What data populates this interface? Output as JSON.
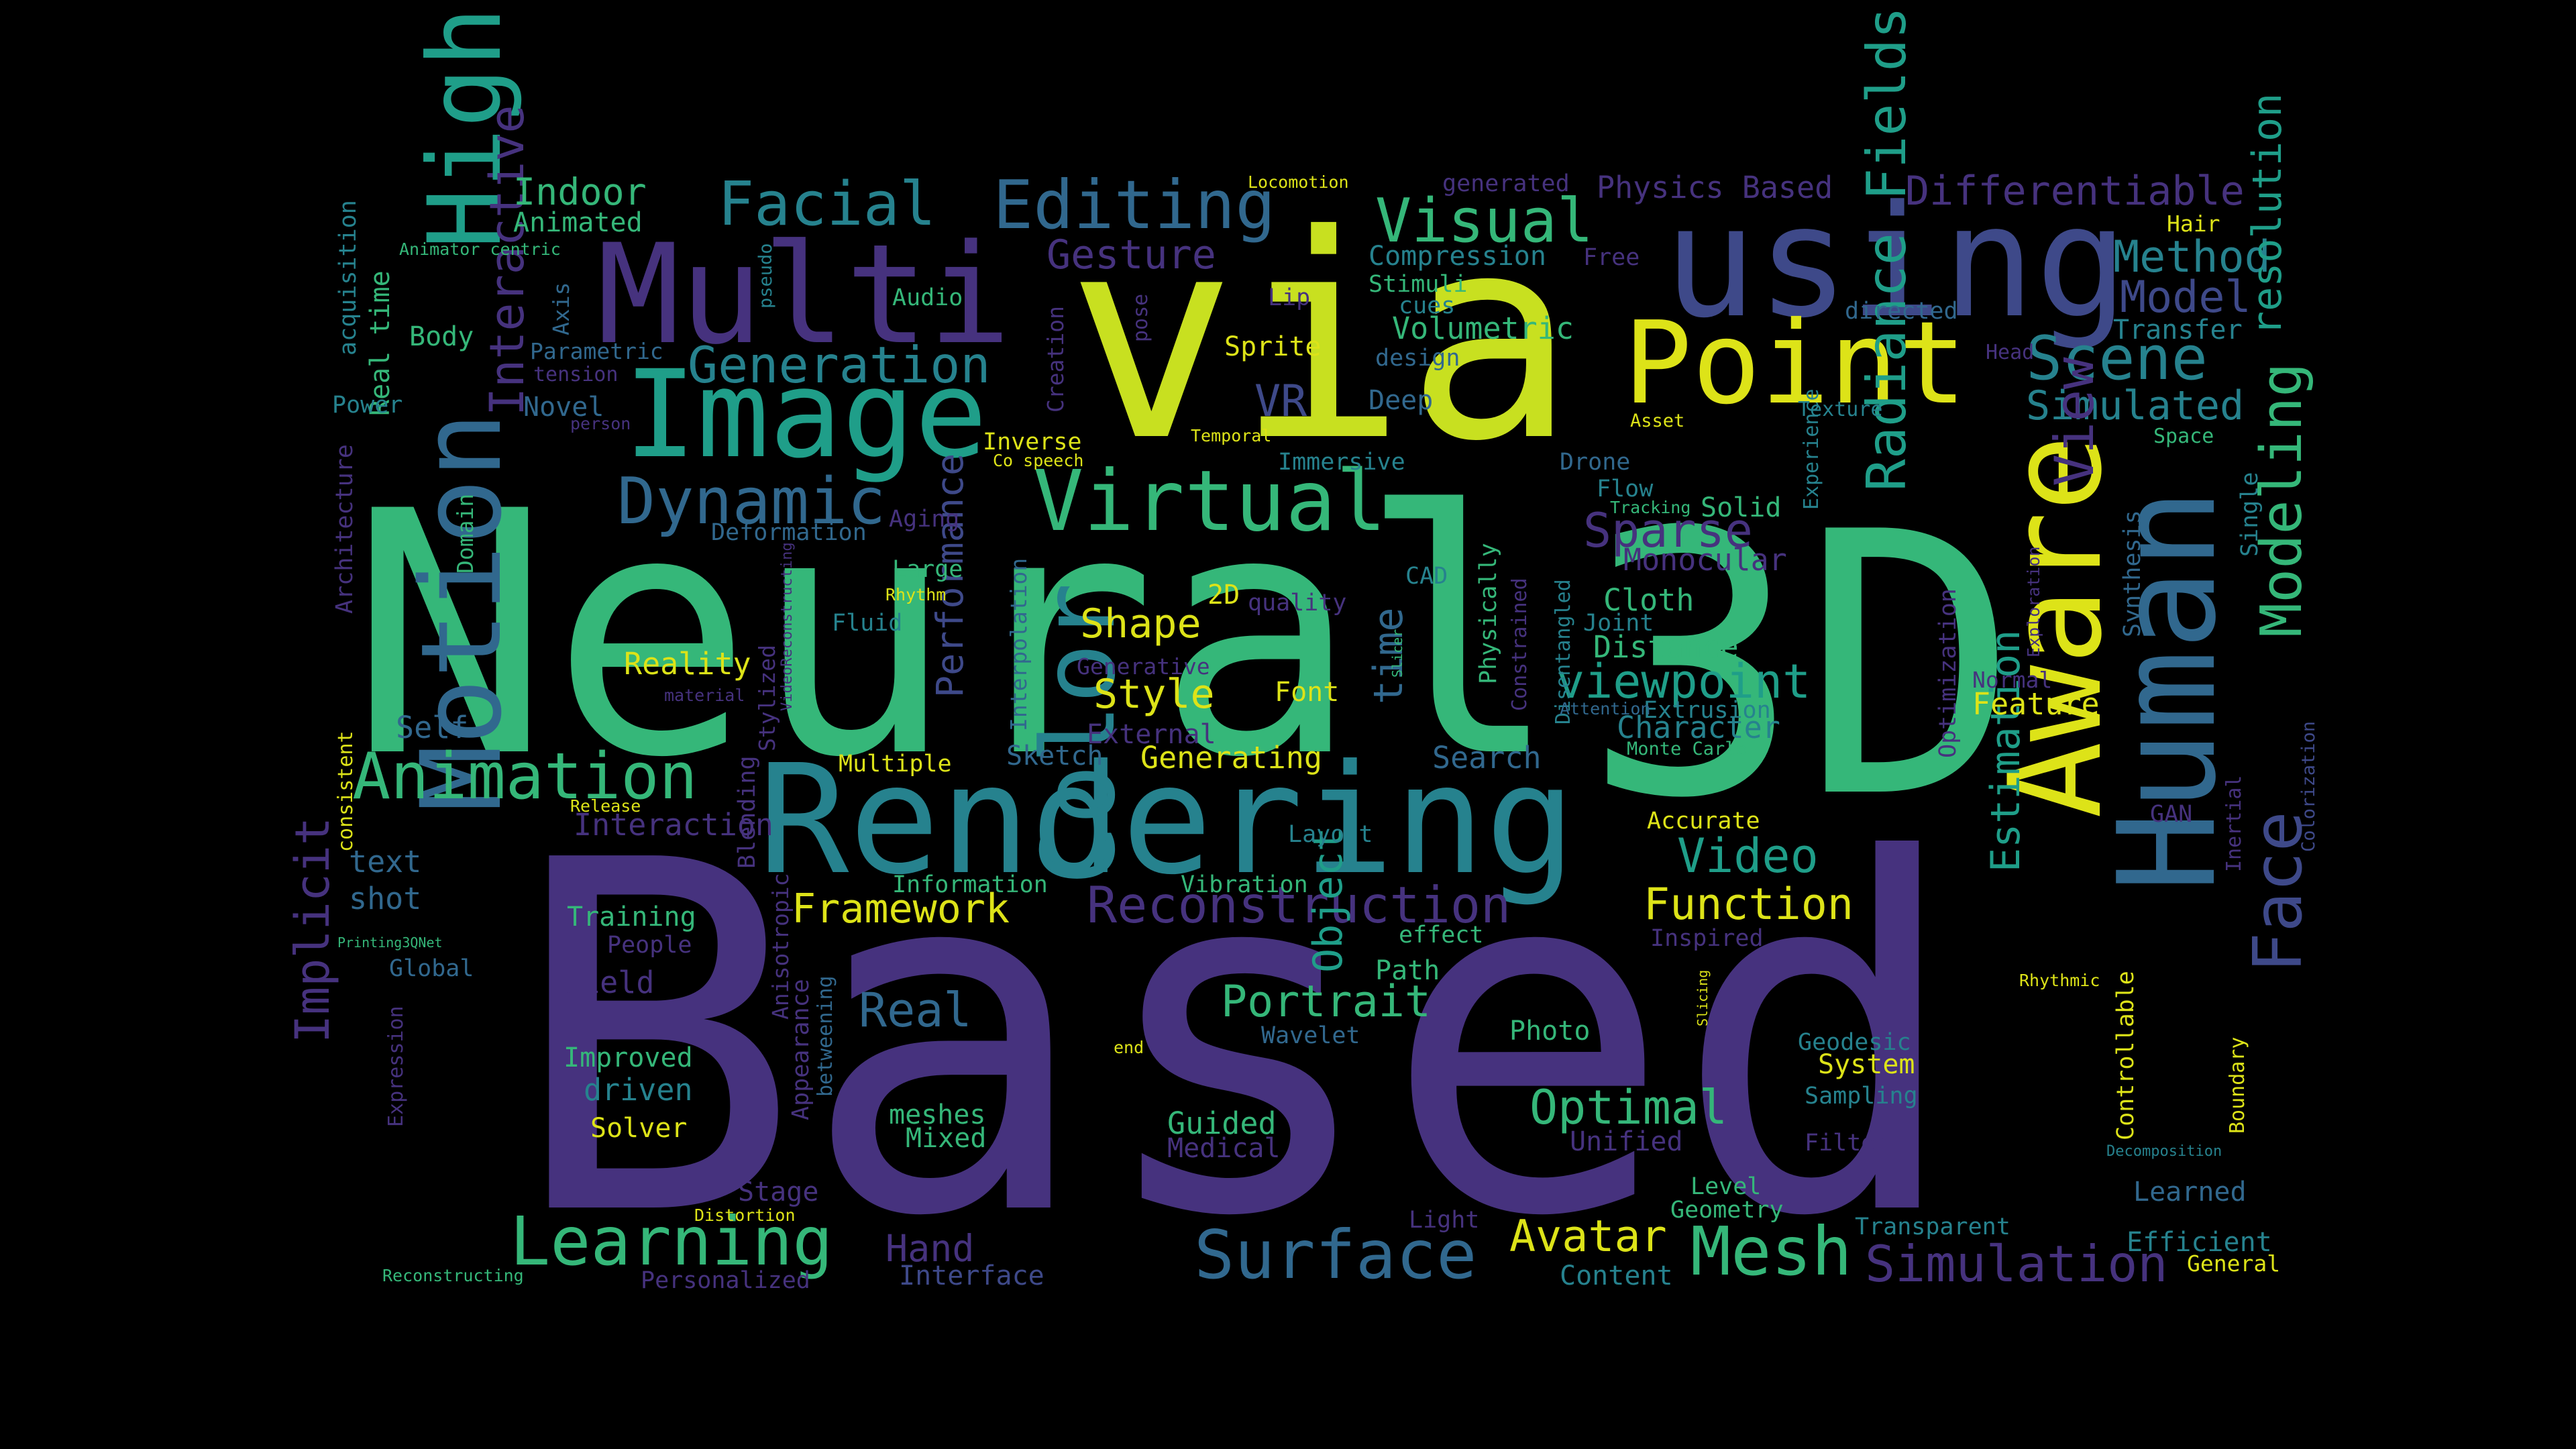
{
  "background_color": "#000000",
  "palette": {
    "deep_purple": "#46327e",
    "purple": "#482878",
    "indigo": "#3e4989",
    "blue": "#31688e",
    "teal": "#26828e",
    "teal_green": "#1f9e89",
    "green": "#35b779",
    "lime": "#6ece58",
    "yellow_green": "#b5de2b",
    "yellow": "#fde725"
  },
  "words": [
    {
      "text": "Based",
      "color": "#46327e"
    },
    {
      "text": "Neural",
      "color": "#35b779"
    },
    {
      "text": "3D",
      "color": "#35b779"
    },
    {
      "text": "via",
      "color": "#c8e020"
    },
    {
      "text": "Rendering",
      "color": "#26828e"
    },
    {
      "text": "using",
      "color": "#3e4989"
    },
    {
      "text": "Multi",
      "color": "#46327e"
    },
    {
      "text": "Image",
      "color": "#1f9e89"
    },
    {
      "text": "Point",
      "color": "#dde318"
    },
    {
      "text": "Human",
      "color": "#31688e"
    },
    {
      "text": "Aware",
      "color": "#dde318"
    },
    {
      "text": "Motion",
      "color": "#31688e"
    },
    {
      "text": "Color",
      "color": "#26828e"
    },
    {
      "text": "High",
      "color": "#1f9e89"
    },
    {
      "text": "Virtual",
      "color": "#35b779"
    },
    {
      "text": "Dynamic",
      "color": "#31688e"
    },
    {
      "text": "Animation",
      "color": "#35b779"
    },
    {
      "text": "Learning",
      "color": "#35b779"
    },
    {
      "text": "Surface",
      "color": "#31688e"
    },
    {
      "text": "Mesh",
      "color": "#35b779"
    },
    {
      "text": "Simulation",
      "color": "#46327e"
    },
    {
      "text": "Face",
      "color": "#3e4989"
    },
    {
      "text": "Modeling",
      "color": "#35b779"
    },
    {
      "text": "Radiance Fields",
      "color": "#1f9e89"
    },
    {
      "text": "Reconstruction",
      "color": "#46327e"
    },
    {
      "text": "Generation",
      "color": "#26828e"
    },
    {
      "text": "Facial",
      "color": "#26828e"
    },
    {
      "text": "Editing",
      "color": "#31688e"
    },
    {
      "text": "Visual",
      "color": "#35b779"
    },
    {
      "text": "Differentiable",
      "color": "#46327e"
    },
    {
      "text": "Scene",
      "color": "#26828e"
    },
    {
      "text": "Method",
      "color": "#26828e"
    },
    {
      "text": "Model",
      "color": "#3e4989"
    },
    {
      "text": "Simulated",
      "color": "#26828e"
    },
    {
      "text": "Framework",
      "color": "#dde318"
    },
    {
      "text": "Function",
      "color": "#dde318"
    },
    {
      "text": "Video",
      "color": "#1f9e89"
    },
    {
      "text": "viewpoint",
      "color": "#1f9e89"
    },
    {
      "text": "Sparse",
      "color": "#46327e"
    },
    {
      "text": "View",
      "color": "#46327e"
    },
    {
      "text": "Estimation",
      "color": "#1f9e89"
    },
    {
      "text": "resolution",
      "color": "#1f9e89"
    },
    {
      "text": "Implicit",
      "color": "#46327e"
    },
    {
      "text": "Interactive",
      "color": "#46327e"
    },
    {
      "text": "Optimal",
      "color": "#35b779"
    },
    {
      "text": "Portrait",
      "color": "#35b779"
    },
    {
      "text": "Real",
      "color": "#31688e"
    },
    {
      "text": "Avatar",
      "color": "#dde318"
    },
    {
      "text": "Object",
      "color": "#1f9e89"
    },
    {
      "text": "Shape",
      "color": "#dde318"
    },
    {
      "text": "Style",
      "color": "#dde318"
    },
    {
      "text": "Performance",
      "color": "#3e4989"
    },
    {
      "text": "time",
      "color": "#31688e"
    },
    {
      "text": "Indoor",
      "color": "#35b779"
    },
    {
      "text": "Gesture",
      "color": "#46327e"
    },
    {
      "text": "VR",
      "color": "#3e4989"
    },
    {
      "text": "Hand",
      "color": "#46327e"
    },
    {
      "text": "Physics Based",
      "color": "#46327e"
    },
    {
      "text": "Compression",
      "color": "#26828e"
    },
    {
      "text": "Volumetric",
      "color": "#35b779"
    },
    {
      "text": "Monocular",
      "color": "#46327e"
    },
    {
      "text": "Cloth",
      "color": "#35b779"
    },
    {
      "text": "Distance",
      "color": "#35b779"
    },
    {
      "text": "Character",
      "color": "#26828e"
    },
    {
      "text": "Extrusion",
      "color": "#26828e"
    },
    {
      "text": "Feature",
      "color": "#dde318"
    },
    {
      "text": "Search",
      "color": "#31688e"
    },
    {
      "text": "Generating",
      "color": "#dde318"
    },
    {
      "text": "Multiple",
      "color": "#dde318"
    },
    {
      "text": "Sketch",
      "color": "#31688e"
    },
    {
      "text": "External",
      "color": "#46327e"
    },
    {
      "text": "Font",
      "color": "#dde318"
    },
    {
      "text": "Reality",
      "color": "#dde318"
    },
    {
      "text": "Self",
      "color": "#31688e"
    },
    {
      "text": "Interaction",
      "color": "#46327e"
    },
    {
      "text": "text",
      "color": "#31688e"
    },
    {
      "text": "shot",
      "color": "#31688e"
    },
    {
      "text": "Training",
      "color": "#35b779"
    },
    {
      "text": "People",
      "color": "#46327e"
    },
    {
      "text": "Field",
      "color": "#46327e"
    },
    {
      "text": "Global",
      "color": "#31688e"
    },
    {
      "text": "Improved",
      "color": "#35b779"
    },
    {
      "text": "driven",
      "color": "#26828e"
    },
    {
      "text": "Solver",
      "color": "#dde318"
    },
    {
      "text": "meshes",
      "color": "#35b779"
    },
    {
      "text": "Mixed",
      "color": "#35b779"
    },
    {
      "text": "Guided",
      "color": "#35b779"
    },
    {
      "text": "Medical",
      "color": "#46327e"
    },
    {
      "text": "Stage",
      "color": "#46327e"
    },
    {
      "text": "Personalized",
      "color": "#46327e"
    },
    {
      "text": "Interface",
      "color": "#3e4989"
    },
    {
      "text": "Light",
      "color": "#46327e"
    },
    {
      "text": "Content",
      "color": "#26828e"
    },
    {
      "text": "Geometry",
      "color": "#35b779"
    },
    {
      "text": "Level",
      "color": "#35b779"
    },
    {
      "text": "Unified",
      "color": "#46327e"
    },
    {
      "text": "Photo",
      "color": "#35b779"
    },
    {
      "text": "Wavelet",
      "color": "#31688e"
    },
    {
      "text": "Path",
      "color": "#35b779"
    },
    {
      "text": "effect",
      "color": "#35b779"
    },
    {
      "text": "Information",
      "color": "#35b779"
    },
    {
      "text": "Vibration",
      "color": "#35b779"
    },
    {
      "text": "Layout",
      "color": "#26828e"
    },
    {
      "text": "Accurate",
      "color": "#dde318"
    },
    {
      "text": "Inspired",
      "color": "#46327e"
    },
    {
      "text": "Geodesic",
      "color": "#26828e"
    },
    {
      "text": "System",
      "color": "#dde318"
    },
    {
      "text": "Sampling",
      "color": "#26828e"
    },
    {
      "text": "Filter",
      "color": "#46327e"
    },
    {
      "text": "Transparent",
      "color": "#26828e"
    },
    {
      "text": "Efficient",
      "color": "#26828e"
    },
    {
      "text": "General",
      "color": "#dde318"
    },
    {
      "text": "Learned",
      "color": "#31688e"
    },
    {
      "text": "Boundary",
      "color": "#dde318"
    },
    {
      "text": "Controllable",
      "color": "#dde318"
    },
    {
      "text": "GAN",
      "color": "#46327e"
    },
    {
      "text": "Inertial",
      "color": "#46327e"
    },
    {
      "text": "Colorization",
      "color": "#3e4989"
    },
    {
      "text": "Optimization",
      "color": "#46327e"
    },
    {
      "text": "Synthesis",
      "color": "#31688e"
    },
    {
      "text": "Exploration",
      "color": "#46327e"
    },
    {
      "text": "Normal",
      "color": "#46327e"
    },
    {
      "text": "Single",
      "color": "#26828e"
    },
    {
      "text": "Space",
      "color": "#35b779"
    },
    {
      "text": "Texture",
      "color": "#26828e"
    },
    {
      "text": "Transfer",
      "color": "#26828e"
    },
    {
      "text": "Head",
      "color": "#46327e"
    },
    {
      "text": "directed",
      "color": "#31688e"
    },
    {
      "text": "Hair",
      "color": "#dde318"
    },
    {
      "text": "Experience",
      "color": "#26828e"
    },
    {
      "text": "Asset",
      "color": "#dde318"
    },
    {
      "text": "Flow",
      "color": "#26828e"
    },
    {
      "text": "Drone",
      "color": "#31688e"
    },
    {
      "text": "Tracking",
      "color": "#35b779"
    },
    {
      "text": "Solid",
      "color": "#35b779"
    },
    {
      "text": "Physically",
      "color": "#35b779"
    },
    {
      "text": "Constrained",
      "color": "#46327e"
    },
    {
      "text": "Disentangled",
      "color": "#26828e"
    },
    {
      "text": "Joint",
      "color": "#26828e"
    },
    {
      "text": "Attention",
      "color": "#31688e"
    },
    {
      "text": "Monte Carlo",
      "color": "#35b779"
    },
    {
      "text": "CAD",
      "color": "#26828e"
    },
    {
      "text": "2D",
      "color": "#dde318"
    },
    {
      "text": "quality",
      "color": "#46327e"
    },
    {
      "text": "Slicer",
      "color": "#35b779"
    },
    {
      "text": "Generative",
      "color": "#46327e"
    },
    {
      "text": "Interpolation",
      "color": "#31688e"
    },
    {
      "text": "Inverse",
      "color": "#dde318"
    },
    {
      "text": "Co speech",
      "color": "#dde318"
    },
    {
      "text": "Temporal",
      "color": "#dde318"
    },
    {
      "text": "Immersive",
      "color": "#26828e"
    },
    {
      "text": "Deep",
      "color": "#31688e"
    },
    {
      "text": "Sprite",
      "color": "#dde318"
    },
    {
      "text": "Lip",
      "color": "#46327e"
    },
    {
      "text": "Stimuli",
      "color": "#35b779"
    },
    {
      "text": "cues",
      "color": "#26828e"
    },
    {
      "text": "design",
      "color": "#31688e"
    },
    {
      "text": "Free",
      "color": "#46327e"
    },
    {
      "text": "generated",
      "color": "#46327e"
    },
    {
      "text": "Locomotion",
      "color": "#dde318"
    },
    {
      "text": "Animated",
      "color": "#35b779"
    },
    {
      "text": "Animator centric",
      "color": "#35b779"
    },
    {
      "text": "pseudo",
      "color": "#26828e"
    },
    {
      "text": "pose",
      "color": "#46327e"
    },
    {
      "text": "Audio",
      "color": "#35b779"
    },
    {
      "text": "Creation",
      "color": "#46327e"
    },
    {
      "text": "Body",
      "color": "#35b779"
    },
    {
      "text": "Parametric",
      "color": "#31688e"
    },
    {
      "text": "tension",
      "color": "#46327e"
    },
    {
      "text": "Axis",
      "color": "#31688e"
    },
    {
      "text": "Real time",
      "color": "#35b779"
    },
    {
      "text": "acquisition",
      "color": "#26828e"
    },
    {
      "text": "Power",
      "color": "#26828e"
    },
    {
      "text": "Novel",
      "color": "#31688e"
    },
    {
      "text": "person",
      "color": "#46327e"
    },
    {
      "text": "Architecture",
      "color": "#46327e"
    },
    {
      "text": "Domain",
      "color": "#35b779"
    },
    {
      "text": "Deformation",
      "color": "#31688e"
    },
    {
      "text": "Aging",
      "color": "#46327e"
    },
    {
      "text": "Large",
      "color": "#35b779"
    },
    {
      "text": "Rhythm",
      "color": "#dde318"
    },
    {
      "text": "Fluid",
      "color": "#26828e"
    },
    {
      "text": "VideoReconstructing",
      "color": "#46327e"
    },
    {
      "text": "material",
      "color": "#46327e"
    },
    {
      "text": "Stylized",
      "color": "#46327e"
    },
    {
      "text": "Blending",
      "color": "#46327e"
    },
    {
      "text": "consistent",
      "color": "#dde318"
    },
    {
      "text": "Release",
      "color": "#dde318"
    },
    {
      "text": "Anisotropic",
      "color": "#46327e"
    },
    {
      "text": "Appearance",
      "color": "#46327e"
    },
    {
      "text": "betweening",
      "color": "#31688e"
    },
    {
      "text": "Printing3QNet",
      "color": "#35b779"
    },
    {
      "text": "Expression",
      "color": "#46327e"
    },
    {
      "text": "Distortion",
      "color": "#dde318"
    },
    {
      "text": "Reconstructing",
      "color": "#35b779"
    },
    {
      "text": "end",
      "color": "#dde318"
    },
    {
      "text": "Slicing",
      "color": "#dde318"
    },
    {
      "text": "Rhythmic",
      "color": "#dde318"
    },
    {
      "text": "Decomposition",
      "color": "#26828e"
    }
  ]
}
